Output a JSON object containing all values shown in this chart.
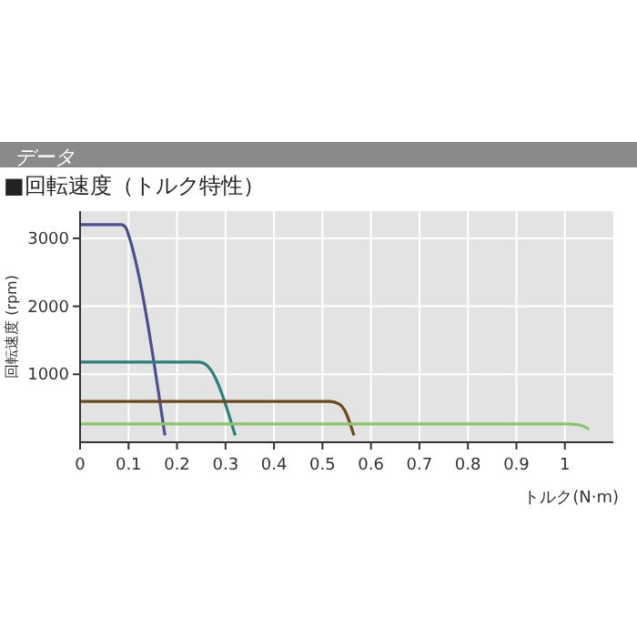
{
  "chart_data": {
    "type": "line",
    "title": "■回転速度（トルク特性）",
    "annotations": [
      "データ"
    ],
    "xlabel": "トルク(N·m)",
    "ylabel": "回転速度 (rpm)",
    "xlim": [
      0,
      1.1
    ],
    "xticks": [
      0,
      0.1,
      0.2,
      0.3,
      0.4,
      0.5,
      0.6,
      0.7,
      0.8,
      0.9,
      1
    ],
    "ylim": [
      0,
      3400
    ],
    "yticks": [
      1000,
      2000,
      3000
    ],
    "grid": true,
    "marker": "none",
    "line_style": "solid",
    "series": [
      {
        "color": "#4b4f8f",
        "x": [
          0,
          0.085,
          0.095,
          0.1,
          0.175
        ],
        "values": [
          3200,
          3200,
          3150,
          3050,
          100
        ]
      },
      {
        "color": "#2a7f7a",
        "x": [
          0,
          0.245,
          0.26,
          0.268,
          0.32
        ],
        "values": [
          1180,
          1180,
          1140,
          1080,
          100
        ]
      },
      {
        "color": "#6b4a1e",
        "x": [
          0,
          0.515,
          0.535,
          0.545,
          0.565
        ],
        "values": [
          600,
          600,
          560,
          480,
          100
        ]
      },
      {
        "color": "#8cc46a",
        "x": [
          0,
          1.005,
          1.025,
          1.04,
          1.05
        ],
        "values": [
          270,
          270,
          260,
          230,
          190
        ]
      }
    ]
  }
}
